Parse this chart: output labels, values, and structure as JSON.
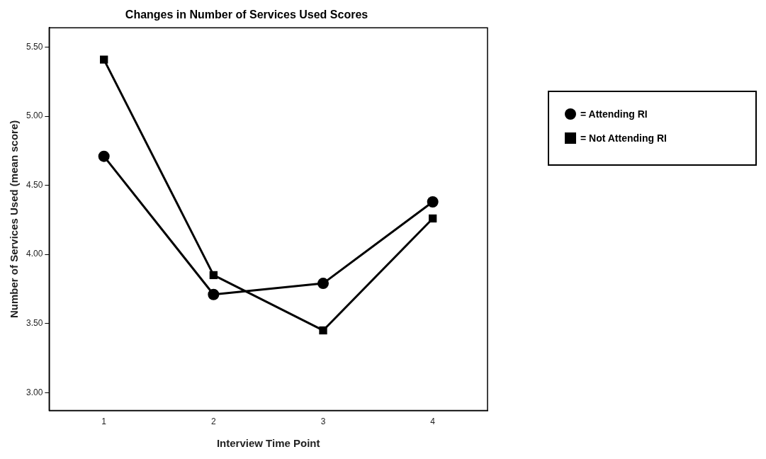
{
  "chart_data": {
    "type": "line",
    "title": "Changes in Number of Services Used Scores",
    "xlabel": "Interview Time Point",
    "ylabel": "Number of Services Used (mean score)",
    "categories": [
      "1",
      "2",
      "3",
      "4"
    ],
    "series": [
      {
        "name": "= Attending RI",
        "color": "#000000",
        "marker": "circle",
        "values": [
          4.71,
          3.71,
          3.79,
          4.38
        ]
      },
      {
        "name": "= Not Attending RI",
        "color": "#000000",
        "marker": "square",
        "values": [
          5.41,
          3.85,
          3.45,
          4.26
        ]
      }
    ],
    "ylim": [
      2.87,
      5.64
    ],
    "yticks": [
      {
        "value": 3,
        "label": "3.00"
      },
      {
        "value": 3.5,
        "label": "3.50"
      },
      {
        "value": 4,
        "label": "4.00"
      },
      {
        "value": 4.5,
        "label": "4.50"
      },
      {
        "value": 5,
        "label": "5.00"
      },
      {
        "value": 5.5,
        "label": "5.50"
      }
    ],
    "grid": false,
    "legend": "right",
    "line_style": "solid"
  }
}
